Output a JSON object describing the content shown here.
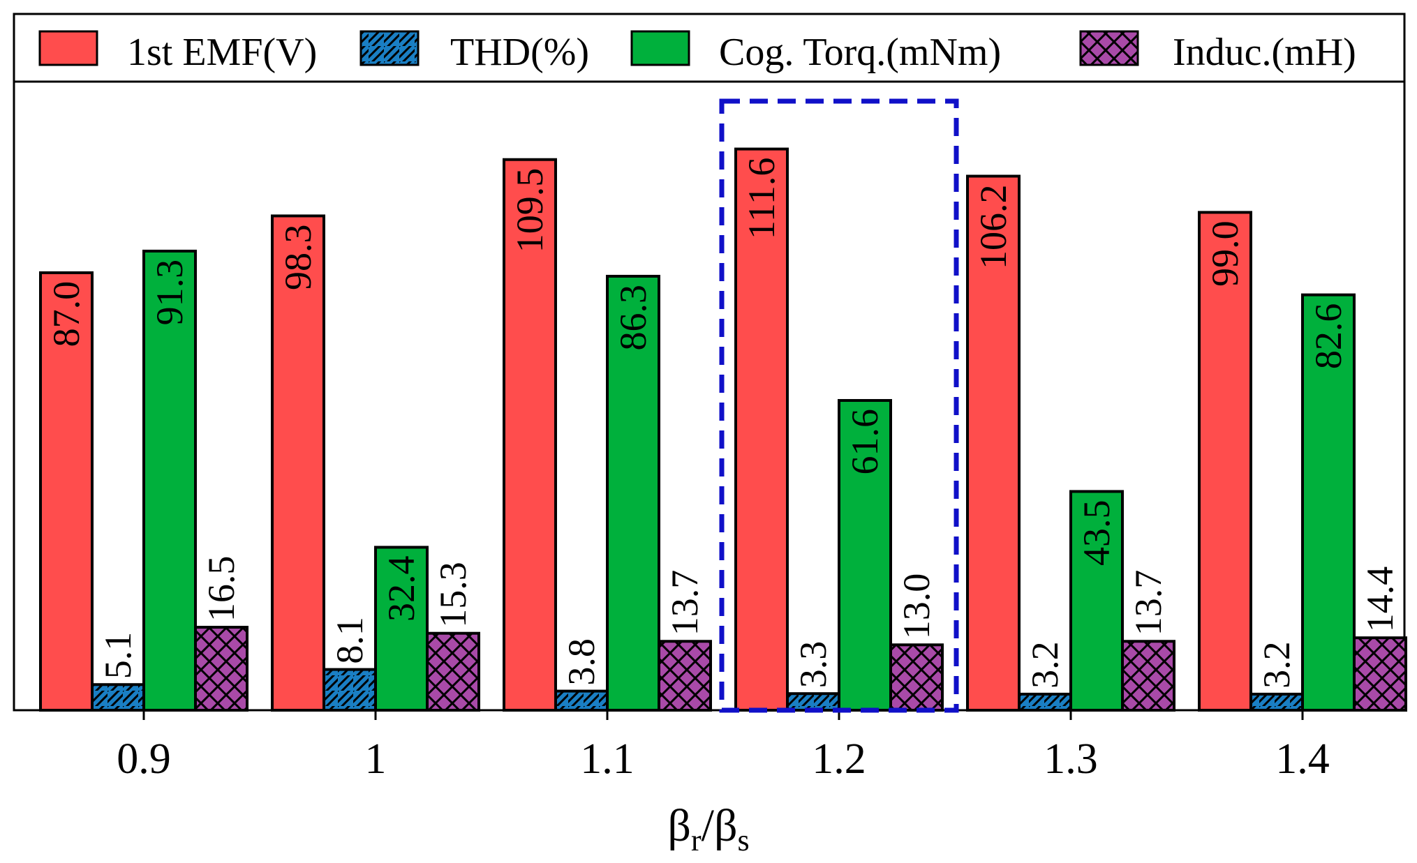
{
  "chart_data": {
    "type": "bar",
    "title": "",
    "xlabel": {
      "base1": "β",
      "sub1": "r",
      "sep": "/",
      "base2": "β",
      "sub2": "s"
    },
    "ylabel": "",
    "ylim": [
      0,
      125
    ],
    "categories": [
      "0.9",
      "1",
      "1.1",
      "1.2",
      "1.3",
      "1.4"
    ],
    "series": [
      {
        "name": "1st EMF(V)",
        "color": "#ff4d4d",
        "pattern": "none",
        "values": [
          87.0,
          98.3,
          109.5,
          111.6,
          106.2,
          99.0
        ],
        "labels": [
          "87.0",
          "98.3",
          "109.5",
          "111.6",
          "106.2",
          "99.0"
        ]
      },
      {
        "name": "THD(%)",
        "color": "#1a7fc4",
        "pattern": "diagonal",
        "values": [
          5.1,
          8.1,
          3.8,
          3.3,
          3.2,
          3.2
        ],
        "labels": [
          "5.1",
          "8.1",
          "3.8",
          "3.3",
          "3.2",
          "3.2"
        ]
      },
      {
        "name": "Cog. Torq.(mNm)",
        "color": "#00b03c",
        "pattern": "none",
        "values": [
          91.3,
          32.4,
          86.3,
          61.6,
          43.5,
          82.6
        ],
        "labels": [
          "91.3",
          "32.4",
          "86.3",
          "61.6",
          "43.5",
          "82.6"
        ]
      },
      {
        "name": "Induc.(mH)",
        "color": "#a94aa8",
        "pattern": "crosshatch",
        "values": [
          16.5,
          15.3,
          13.7,
          13.0,
          13.7,
          14.4
        ],
        "labels": [
          "16.5",
          "15.3",
          "13.7",
          "13.0",
          "13.7",
          "14.4"
        ]
      }
    ],
    "legend_position": "top",
    "highlight": {
      "category": "1.2",
      "style": "dashed-box",
      "color": "#1010c8"
    }
  }
}
